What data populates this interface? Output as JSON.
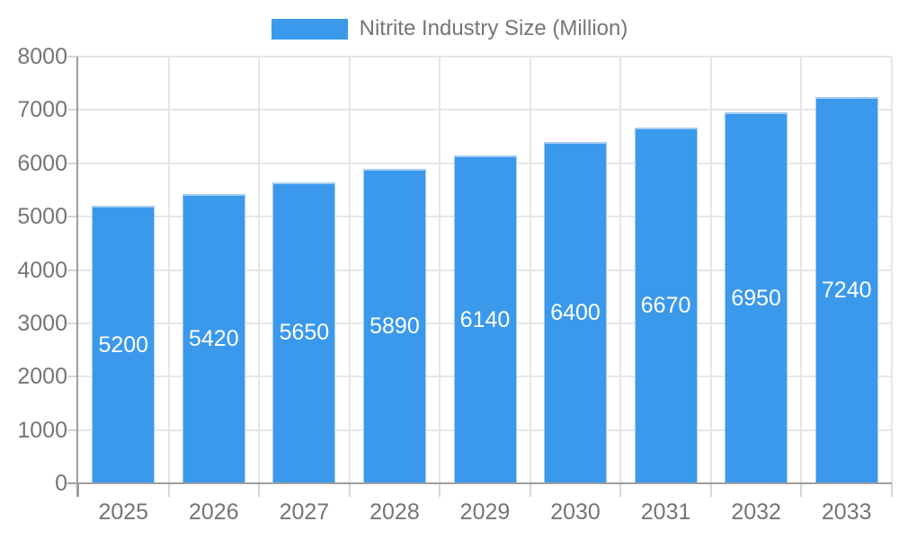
{
  "legend": {
    "label": "Nitrite Industry Size (Million)"
  },
  "chart_data": {
    "type": "bar",
    "title": "",
    "series_name": "Nitrite Industry Size (Million)",
    "categories": [
      "2025",
      "2026",
      "2027",
      "2028",
      "2029",
      "2030",
      "2031",
      "2032",
      "2033"
    ],
    "values": [
      5200,
      5420,
      5650,
      5890,
      6140,
      6400,
      6670,
      6950,
      7240
    ],
    "bar_labels": [
      "5200",
      "5420",
      "5650",
      "5890",
      "6140",
      "6400",
      "6670",
      "6950",
      "7240"
    ],
    "xlabel": "",
    "ylabel": "",
    "ylim": [
      0,
      8000
    ],
    "yticks": [
      0,
      1000,
      2000,
      3000,
      4000,
      5000,
      6000,
      7000,
      8000
    ],
    "grid": true,
    "legend_position": "top-center",
    "colors": {
      "bar_fill": "#3B99EC",
      "bar_border": "#A6CDF2",
      "grid": "#E6E6E6",
      "axis": "#9E9E9E",
      "tick": "#D6D6D6",
      "label_text": "#757575",
      "bar_label_text": "#FFFFFF",
      "background": "#FFFFFF"
    }
  }
}
